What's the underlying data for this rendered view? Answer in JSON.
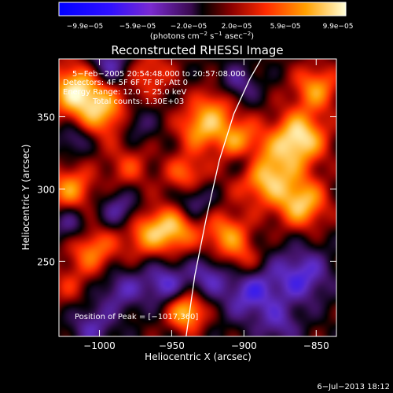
{
  "chart_data": {
    "type": "heatmap",
    "title": "Reconstructed RHESSI Image",
    "xlabel": "Heliocentric X (arcsec)",
    "ylabel": "Heliocentric Y (arcsec)",
    "xlim": [
      -1028,
      -836
    ],
    "ylim": [
      198,
      390
    ],
    "x_ticks": [
      -1000,
      -950,
      -900,
      -850
    ],
    "x_tick_labels": [
      "−1000",
      "−950",
      "−900",
      "−850"
    ],
    "y_ticks": [
      250,
      300,
      350
    ],
    "y_tick_labels": [
      "250",
      "300",
      "350"
    ],
    "colorbar": {
      "range": [
        -9.9e-05,
        9.9e-05
      ],
      "tick_labels": [
        "−9.9e−05",
        "−5.9e−05",
        "−2.0e−05",
        "2.0e−05",
        "5.9e−05",
        "9.9e−05"
      ],
      "unit_label": "(photons cm",
      "unit_exp1": "−2",
      "unit_mid": " s",
      "unit_exp2": "−1",
      "unit_end": " asec",
      "unit_exp3": "−2",
      "unit_close": ")"
    },
    "annotations": [
      "5−Feb−2005 20:54:48.000 to 20:57:08.000",
      "Detectors: 4F 5F 6F 7F 8F, Att 0",
      "Energy Range: 12.0 − 25.0 keV",
      "Total counts: 1.30E+03"
    ],
    "peak_label": "Position of Peak = [−1017,360]",
    "limb_points": [
      [
        -940,
        198
      ],
      [
        -934,
        240
      ],
      [
        -926,
        280
      ],
      [
        -917,
        320
      ],
      [
        -907,
        352
      ],
      [
        -896,
        376
      ],
      [
        -888,
        390
      ]
    ],
    "blobs": [
      {
        "x": -1014,
        "y": 368,
        "v": 0.9,
        "s": 14
      },
      {
        "x": -995,
        "y": 352,
        "v": 0.55,
        "s": 12
      },
      {
        "x": -1020,
        "y": 300,
        "v": 0.6,
        "s": 11
      },
      {
        "x": -1005,
        "y": 258,
        "v": 0.55,
        "s": 12
      },
      {
        "x": -980,
        "y": 315,
        "v": 0.35,
        "s": 11
      },
      {
        "x": -968,
        "y": 270,
        "v": 0.55,
        "s": 12
      },
      {
        "x": -948,
        "y": 272,
        "v": 0.65,
        "s": 11
      },
      {
        "x": -940,
        "y": 310,
        "v": 0.5,
        "s": 10
      },
      {
        "x": -930,
        "y": 343,
        "v": 0.65,
        "s": 11
      },
      {
        "x": -918,
        "y": 360,
        "v": 0.4,
        "s": 10
      },
      {
        "x": -905,
        "y": 335,
        "v": 0.55,
        "s": 11
      },
      {
        "x": -885,
        "y": 310,
        "v": 0.8,
        "s": 14
      },
      {
        "x": -862,
        "y": 335,
        "v": 0.9,
        "s": 13
      },
      {
        "x": -850,
        "y": 370,
        "v": 0.6,
        "s": 11
      },
      {
        "x": -860,
        "y": 290,
        "v": 0.75,
        "s": 12
      },
      {
        "x": -912,
        "y": 268,
        "v": 0.6,
        "s": 11
      },
      {
        "x": -900,
        "y": 250,
        "v": 0.35,
        "s": 9
      },
      {
        "x": -940,
        "y": 215,
        "v": 0.8,
        "s": 9
      },
      {
        "x": -965,
        "y": 380,
        "v": 0.4,
        "s": 11
      },
      {
        "x": -1022,
        "y": 232,
        "v": 0.25,
        "s": 10
      },
      {
        "x": -995,
        "y": 385,
        "v": -0.55,
        "s": 11
      },
      {
        "x": -1018,
        "y": 335,
        "v": -0.35,
        "s": 8
      },
      {
        "x": -975,
        "y": 345,
        "v": -0.3,
        "s": 9
      },
      {
        "x": -985,
        "y": 285,
        "v": -0.45,
        "s": 10
      },
      {
        "x": -1020,
        "y": 275,
        "v": -0.4,
        "s": 9
      },
      {
        "x": -985,
        "y": 230,
        "v": -0.4,
        "s": 11
      },
      {
        "x": -955,
        "y": 235,
        "v": -0.5,
        "s": 11
      },
      {
        "x": -925,
        "y": 240,
        "v": -0.4,
        "s": 10
      },
      {
        "x": -935,
        "y": 292,
        "v": -0.4,
        "s": 9
      },
      {
        "x": -895,
        "y": 228,
        "v": -0.55,
        "s": 14
      },
      {
        "x": -860,
        "y": 240,
        "v": -0.55,
        "s": 14
      },
      {
        "x": -905,
        "y": 372,
        "v": -0.4,
        "s": 10
      },
      {
        "x": -898,
        "y": 318,
        "v": -0.45,
        "s": 8
      },
      {
        "x": -1005,
        "y": 205,
        "v": -0.4,
        "s": 11
      },
      {
        "x": -875,
        "y": 205,
        "v": -0.35,
        "s": 10
      }
    ]
  },
  "footer": {
    "date": "6−Jul−2013 18:12"
  },
  "colors": {
    "background": "#000000",
    "text": "#ffffff"
  }
}
